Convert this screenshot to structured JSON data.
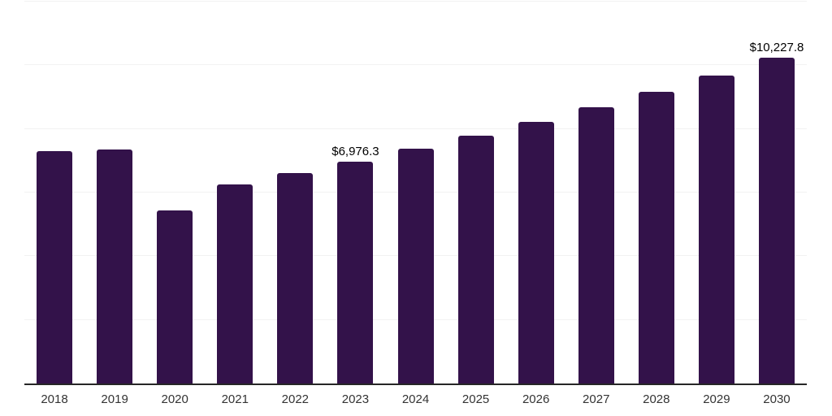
{
  "chart_data": {
    "type": "bar",
    "title": "",
    "xlabel": "",
    "ylabel": "",
    "categories": [
      "2018",
      "2019",
      "2020",
      "2021",
      "2022",
      "2023",
      "2024",
      "2025",
      "2026",
      "2027",
      "2028",
      "2029",
      "2030"
    ],
    "values": [
      7295,
      7360,
      5440,
      6260,
      6625,
      6976.3,
      7368.3,
      7782.4,
      8219.7,
      8681.6,
      9169.5,
      9684.8,
      10227.8
    ],
    "value_labels": {
      "2023": "$6,976.3",
      "2030": "$10,227.8"
    },
    "ylim": [
      0,
      12000
    ],
    "gridline_step": 2000,
    "grid": "horizontal-only, no axis tick labels on y",
    "legend_position": "none",
    "colors": {
      "bar": "#33124A",
      "axis_line": "#262626",
      "gridline": "#f2f2f2",
      "x_tick_label": "#333333",
      "data_label": "#000000",
      "background": "#ffffff"
    }
  }
}
